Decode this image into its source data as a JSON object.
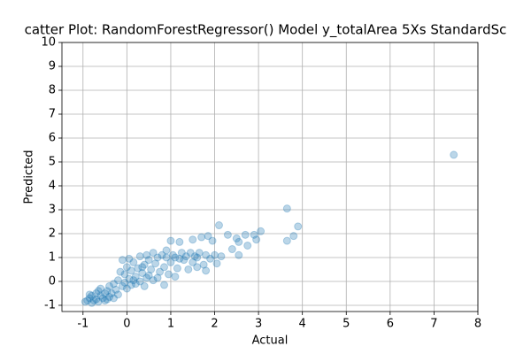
{
  "chart_data": {
    "type": "scatter",
    "title": "catter Plot: RandomForestRegressor() Model y_totalArea 5Xs StandardSc",
    "xlabel": "Actual",
    "ylabel": "Predicted",
    "color": "#1f77b4",
    "grid": true,
    "xlim": [
      -1.48,
      8
    ],
    "ylim": [
      -1.26,
      10
    ],
    "xticks": [
      -1,
      0,
      1,
      2,
      3,
      4,
      5,
      6,
      7,
      8
    ],
    "yticks": [
      -1,
      0,
      1,
      2,
      3,
      4,
      5,
      6,
      7,
      8,
      9,
      10
    ],
    "x": [
      -0.95,
      -0.9,
      -0.85,
      -0.8,
      -0.8,
      -0.75,
      -0.7,
      -0.7,
      -0.65,
      -0.6,
      -0.6,
      -0.55,
      -0.5,
      -0.5,
      -0.45,
      -0.4,
      -0.4,
      -0.35,
      -0.3,
      -0.3,
      -0.25,
      -0.2,
      -0.2,
      -0.15,
      -0.1,
      -0.1,
      -0.05,
      0,
      0,
      0.05,
      0.1,
      0.1,
      0.15,
      0.2,
      0.2,
      0.25,
      0.3,
      0.3,
      0.35,
      0.4,
      0.4,
      0.45,
      0.5,
      0.5,
      0.55,
      0.6,
      0.6,
      0.65,
      0.7,
      0.75,
      0.8,
      0.85,
      0.85,
      0.9,
      0.9,
      0.95,
      1.0,
      1.0,
      1.05,
      1.1,
      1.1,
      1.15,
      1.2,
      1.25,
      1.3,
      1.35,
      1.4,
      1.45,
      1.5,
      1.5,
      1.55,
      1.6,
      1.65,
      1.7,
      1.75,
      1.8,
      1.8,
      1.85,
      1.9,
      1.95,
      2.0,
      2.05,
      2.1,
      2.15,
      2.3,
      2.4,
      2.5,
      2.55,
      2.55,
      2.7,
      2.75,
      2.9,
      2.95,
      3.05,
      3.65,
      3.65,
      3.8,
      3.9,
      7.45,
      -0.85,
      -0.65,
      -0.45,
      0.15,
      0.35,
      0.7,
      1.2,
      1.6,
      0.05,
      -0.05,
      0.45
    ],
    "y": [
      -0.85,
      -0.8,
      -0.7,
      -0.9,
      -0.6,
      -0.8,
      -0.5,
      -0.75,
      -0.85,
      -0.6,
      -0.3,
      -0.7,
      -0.5,
      -0.8,
      -0.4,
      -0.65,
      -0.2,
      -0.5,
      -0.1,
      -0.7,
      -0.35,
      0.05,
      -0.55,
      0.4,
      -0.2,
      0.9,
      0.3,
      -0.3,
      0.6,
      0.1,
      -0.15,
      0.45,
      0.8,
      0.2,
      -0.1,
      0.55,
      0,
      1.05,
      0.35,
      -0.2,
      0.7,
      1.1,
      0.25,
      0.9,
      0.5,
      1.2,
      0.05,
      0.75,
      1.0,
      0.4,
      1.1,
      -0.15,
      0.6,
      1.3,
      1.0,
      0.3,
      0.8,
      1.7,
      1.1,
      0.2,
      1.0,
      0.55,
      1.65,
      1.2,
      0.9,
      1.05,
      0.5,
      1.2,
      1.75,
      0.8,
      1.05,
      0.6,
      1.2,
      1.85,
      0.7,
      0.45,
      1.1,
      1.9,
      0.95,
      1.7,
      1.1,
      0.75,
      2.35,
      1.05,
      1.95,
      1.35,
      1.8,
      1.1,
      1.65,
      1.95,
      1.5,
      1.95,
      1.75,
      2.1,
      3.05,
      1.7,
      1.9,
      2.3,
      5.3,
      -0.55,
      -0.4,
      -0.75,
      0.05,
      0.6,
      0.15,
      0.95,
      1.0,
      0.95,
      -0.05,
      0.15
    ]
  }
}
